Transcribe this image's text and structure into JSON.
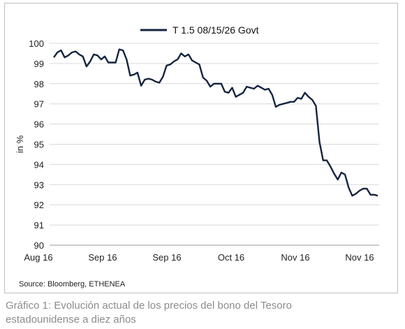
{
  "chart_data": {
    "type": "line",
    "legend_position": "top-center",
    "ylabel": "in %",
    "ylim": [
      90,
      100
    ],
    "yticks": [
      90,
      91,
      92,
      93,
      94,
      95,
      96,
      97,
      98,
      99,
      100
    ],
    "grid": "horizontal",
    "xtick_labels": [
      "Aug 16",
      "Sep 16",
      "Sep 16",
      "Oct 16",
      "Nov 16",
      "Nov 16"
    ],
    "color": "#15253f",
    "series": [
      {
        "name": "T 1.5 08/15/26 Govt",
        "values": [
          99.3,
          99.55,
          99.65,
          99.3,
          99.4,
          99.55,
          99.6,
          99.45,
          99.35,
          98.85,
          99.1,
          99.45,
          99.4,
          99.2,
          99.35,
          99.05,
          99.05,
          99.05,
          99.7,
          99.65,
          99.2,
          98.4,
          98.45,
          98.55,
          97.9,
          98.2,
          98.25,
          98.2,
          98.1,
          98.05,
          98.35,
          98.9,
          98.95,
          99.1,
          99.2,
          99.5,
          99.35,
          99.45,
          99.15,
          99.05,
          98.95,
          98.3,
          98.15,
          97.85,
          98.0,
          98.0,
          98.0,
          97.6,
          97.55,
          97.8,
          97.35,
          97.45,
          97.55,
          97.85,
          97.8,
          97.75,
          97.9,
          97.8,
          97.7,
          97.75,
          97.45,
          96.85,
          96.95,
          97.0,
          97.05,
          97.1,
          97.1,
          97.3,
          97.25,
          97.55,
          97.35,
          97.2,
          96.9,
          95.1,
          94.2,
          94.2,
          93.9,
          93.55,
          93.25,
          93.6,
          93.5,
          92.85,
          92.45,
          92.55,
          92.7,
          92.8,
          92.8,
          92.5,
          92.5,
          92.45
        ]
      }
    ]
  },
  "source": "Source: Bloomberg, ETHENEA",
  "caption": "Gráfico 1: Evolución actual de los precios del bono del Tesoro estadounidense a diez años"
}
